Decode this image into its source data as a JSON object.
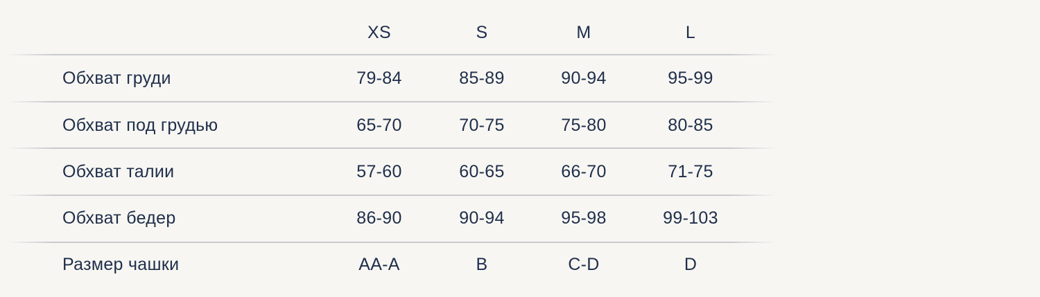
{
  "table": {
    "headers": [
      "XS",
      "S",
      "M",
      "L"
    ],
    "rows": [
      {
        "label": "Обхват груди",
        "values": [
          "79-84",
          "85-89",
          "90-94",
          "95-99"
        ]
      },
      {
        "label": "Обхват под грудью",
        "values": [
          "65-70",
          "70-75",
          "75-80",
          "80-85"
        ]
      },
      {
        "label": "Обхват талии",
        "values": [
          "57-60",
          "60-65",
          "66-70",
          "71-75"
        ]
      },
      {
        "label": "Обхват бедер",
        "values": [
          "86-90",
          "90-94",
          "95-98",
          "99-103"
        ]
      },
      {
        "label": "Размер чашки",
        "values": [
          "AA-A",
          "B",
          "C-D",
          "D"
        ]
      }
    ]
  }
}
